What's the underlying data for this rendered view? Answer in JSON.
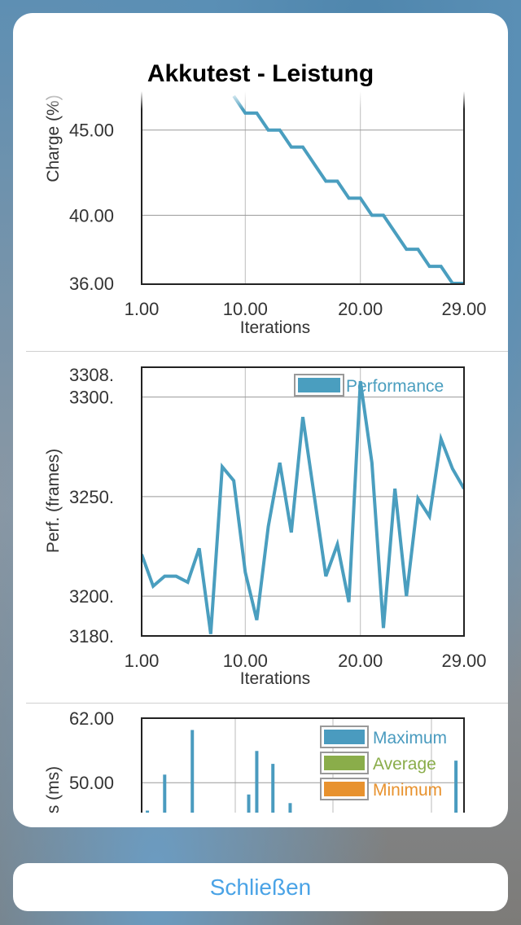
{
  "dialog": {
    "title": "Akkutest - Leistung",
    "close_label": "Schließen"
  },
  "colors": {
    "line": "#4a9ebf",
    "maximum": "#4a9bbf",
    "average": "#8aad4a",
    "minimum": "#e8922e",
    "link": "#4aa3e6"
  },
  "chart_data": [
    {
      "type": "line",
      "xlabel": "Iterations",
      "ylabel": "Charge (%)",
      "xlim": [
        1,
        29
      ],
      "ylim": [
        36,
        46.9
      ],
      "xticks": [
        "1.00",
        "10.00",
        "20.00",
        "29.00"
      ],
      "yticks": [
        "36.00",
        "40.00",
        "45.00"
      ],
      "grid": true,
      "x": [
        9,
        10,
        11,
        12,
        13,
        14,
        15,
        16,
        17,
        18,
        19,
        20,
        21,
        22,
        23,
        24,
        25,
        26,
        27,
        28,
        29
      ],
      "y": [
        47,
        46,
        46,
        45,
        45,
        44,
        44,
        43,
        42,
        42,
        41,
        41,
        40,
        40,
        39,
        38,
        38,
        37,
        37,
        36,
        36
      ]
    },
    {
      "type": "line",
      "xlabel": "Iterations",
      "ylabel": "Perf. (frames)",
      "xlim": [
        1,
        29
      ],
      "ylim": [
        3180,
        3315
      ],
      "xticks": [
        "1.00",
        "10.00",
        "20.00",
        "29.00"
      ],
      "yticks": [
        "3180.",
        "3200.",
        "3250.",
        "3300.",
        "3308."
      ],
      "grid": true,
      "legend": "top-right",
      "series": [
        {
          "name": "Performance",
          "x": [
            1,
            2,
            3,
            4,
            5,
            6,
            7,
            8,
            9,
            10,
            11,
            12,
            13,
            14,
            15,
            16,
            17,
            18,
            19,
            20,
            21,
            22,
            23,
            24,
            25,
            26,
            27,
            28,
            29
          ],
          "y": [
            3221,
            3205,
            3210,
            3210,
            3207,
            3224,
            3181,
            3265,
            3258,
            3212,
            3188,
            3235,
            3267,
            3232,
            3290,
            3250,
            3210,
            3226,
            3197,
            3308,
            3267,
            3184,
            3254,
            3200,
            3249,
            3240,
            3279,
            3264,
            3254
          ]
        }
      ]
    },
    {
      "type": "bar",
      "ylabel": "s (ms)",
      "xlim": [
        1,
        29
      ],
      "ylim": [
        44,
        62
      ],
      "yticks": [
        "50.00",
        "62.00"
      ],
      "grid": true,
      "legend": "top-right",
      "series": [
        {
          "name": "Maximum",
          "x": [
            1.5,
            3,
            5.4,
            10.3,
            11,
            12.4,
            13.9,
            28.3
          ],
          "y": [
            44.8,
            51.5,
            59.8,
            47.8,
            55.9,
            53.5,
            46.2,
            54.1
          ]
        },
        {
          "name": "Average"
        },
        {
          "name": "Minimum"
        }
      ]
    }
  ]
}
